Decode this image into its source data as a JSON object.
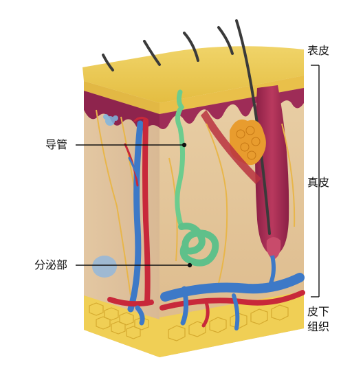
{
  "diagram": {
    "subject": "skin cross-section with sweat gland",
    "labels": {
      "duct": "导管",
      "secretory": "分泌部",
      "epidermis": "表皮",
      "dermis": "真皮",
      "subcutis_line1": "皮下",
      "subcutis_line2": "组织"
    },
    "colors": {
      "epidermis": "#e9c64a",
      "dermal_top": "#9c2a55",
      "dermis": "#e6c9a0",
      "fat": "#f2d25a",
      "artery": "#c8283a",
      "vein": "#3d79c7",
      "gland": "#5fc08a",
      "hair": "#3a3a3a",
      "nerve": "#e8b64a"
    }
  }
}
